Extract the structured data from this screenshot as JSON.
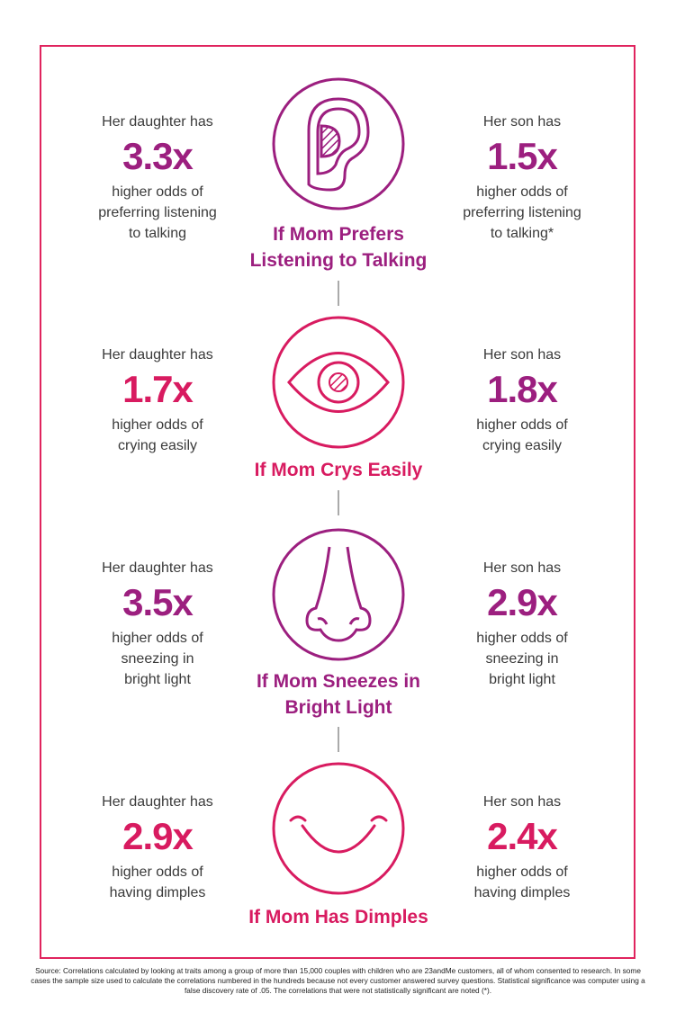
{
  "colors": {
    "purple": "#9c1f7f",
    "pink": "#d81b60",
    "border": "#e0245e"
  },
  "sections": [
    {
      "title_lines": [
        "If Mom Prefers",
        "Listening to Talking"
      ],
      "icon": "ear-icon",
      "color": "purple",
      "daughter": {
        "label": "Her daughter has",
        "value": "3.3x",
        "lines": [
          "higher odds of",
          "preferring listening",
          "to talking"
        ]
      },
      "son": {
        "label": "Her son has",
        "value": "1.5x",
        "lines": [
          "higher odds of",
          "preferring listening",
          "to talking*"
        ]
      }
    },
    {
      "title_lines": [
        "If Mom Crys Easily"
      ],
      "icon": "eye-icon",
      "color": "pink",
      "daughter": {
        "label": "Her daughter has",
        "value": "1.7x",
        "lines": [
          "higher odds of",
          "crying easily"
        ]
      },
      "son": {
        "label": "Her son has",
        "value": "1.8x",
        "lines": [
          "higher odds of",
          "crying easily"
        ]
      }
    },
    {
      "title_lines": [
        "If Mom Sneezes in",
        "Bright Light"
      ],
      "icon": "nose-icon",
      "color": "purple",
      "daughter": {
        "label": "Her daughter has",
        "value": "3.5x",
        "lines": [
          "higher odds of",
          "sneezing in",
          "bright light"
        ]
      },
      "son": {
        "label": "Her son has",
        "value": "2.9x",
        "lines": [
          "higher odds of",
          "sneezing in",
          "bright light"
        ]
      }
    },
    {
      "title_lines": [
        "If Mom Has Dimples"
      ],
      "icon": "smile-icon",
      "color": "pink",
      "daughter": {
        "label": "Her daughter has",
        "value": "2.9x",
        "lines": [
          "higher odds of",
          "having dimples"
        ]
      },
      "son": {
        "label": "Her son has",
        "value": "2.4x",
        "lines": [
          "higher odds of",
          "having dimples"
        ]
      }
    }
  ],
  "source": "Source: Correlations calculated by looking at traits among a group of more than 15,000 couples with children who are 23andMe customers, all of whom consented to research. In some cases the sample size used to calculate the correlations numbered in the hundreds because not every customer answered survey questions. Statistical significance was computer using a false discovery rate of .05. The correlations that were not statistically significant are noted (*)."
}
